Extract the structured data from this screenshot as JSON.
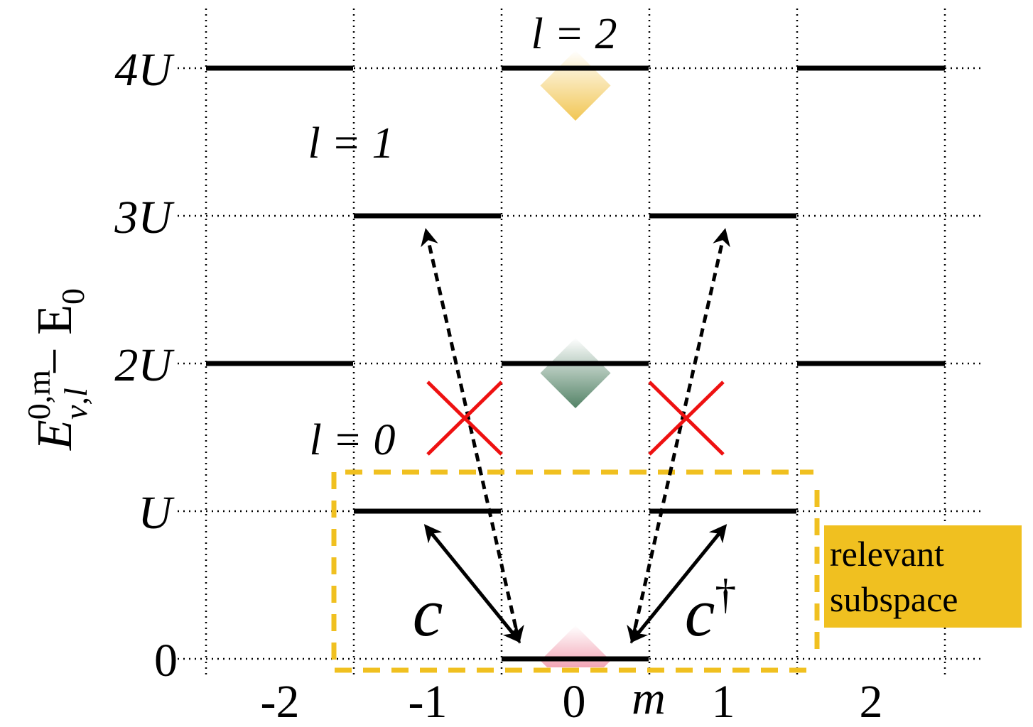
{
  "y_axis": {
    "label_main": "E",
    "label_sup": "0,m",
    "label_sub": "ν,l",
    "label_rest": " − E",
    "label_rest_sub": "0",
    "ticks": [
      "0",
      "U",
      "2U",
      "3U",
      "4U"
    ]
  },
  "x_axis": {
    "ticks": [
      "-2",
      "-1",
      "0",
      "1",
      "2"
    ],
    "variable": "m"
  },
  "bands": [
    {
      "label": "l = 0",
      "color": "#e8607c"
    },
    {
      "label": "l = 1",
      "color": "#4a7c5e"
    },
    {
      "label": "l = 2",
      "color": "#f0c040"
    }
  ],
  "levels": [
    {
      "m": -2,
      "energy": "2U"
    },
    {
      "m": -2,
      "energy": "4U"
    },
    {
      "m": -1,
      "energy": "U"
    },
    {
      "m": -1,
      "energy": "3U"
    },
    {
      "m": 0,
      "energy": "0"
    },
    {
      "m": 0,
      "energy": "2U"
    },
    {
      "m": 0,
      "energy": "4U"
    },
    {
      "m": 1,
      "energy": "U"
    },
    {
      "m": 1,
      "energy": "3U"
    },
    {
      "m": 2,
      "energy": "2U"
    },
    {
      "m": 2,
      "energy": "4U"
    }
  ],
  "operators": {
    "annihilation": "c",
    "creation": "c",
    "creation_sup": "†"
  },
  "legend": {
    "line1": "relevant",
    "line2": "subspace",
    "color": "#f0c020"
  },
  "forbidden_marker_color": "#ee1111"
}
